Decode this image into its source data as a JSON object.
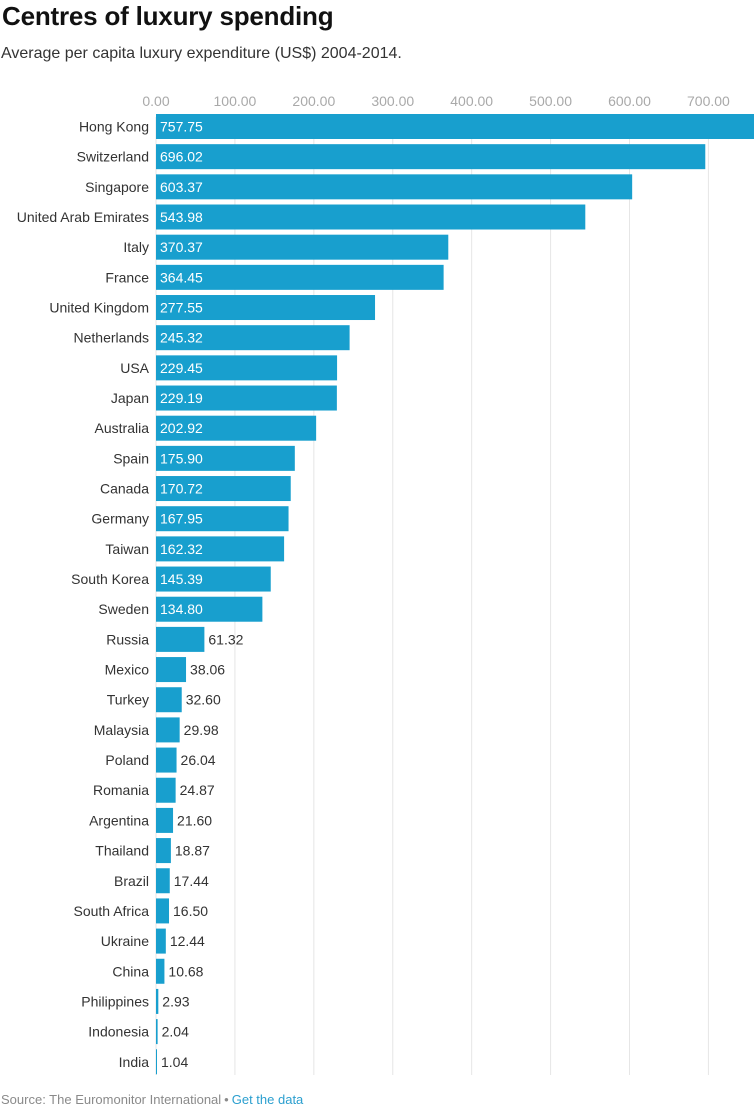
{
  "title": "Centres of luxury spending",
  "subtitle": "Average per capita luxury expenditure (US$) 2004-2014.",
  "footer": {
    "source": "Source: The Euromonitor International",
    "separator": "•",
    "link_label": "Get the data"
  },
  "colors": {
    "bar": "#189fce",
    "grid": "#e6e6e6",
    "tick_label": "#a9a9a9",
    "category_label": "#333333",
    "value_label_inside": "#ffffff",
    "value_label_outside": "#333333"
  },
  "chart_data": {
    "type": "bar",
    "orientation": "horizontal",
    "title": "Centres of luxury spending",
    "subtitle": "Average per capita luxury expenditure (US$) 2004-2014.",
    "xlabel": "",
    "ylabel": "",
    "xlim": [
      0,
      757.75
    ],
    "ticks": [
      0,
      100,
      200,
      300,
      400,
      500,
      600,
      700
    ],
    "tick_labels": [
      "0.00",
      "100.00",
      "200.00",
      "300.00",
      "400.00",
      "500.00",
      "600.00",
      "700.00"
    ],
    "grid": true,
    "legend": "none",
    "categories": [
      "Hong Kong",
      "Switzerland",
      "Singapore",
      "United Arab Emirates",
      "Italy",
      "France",
      "United Kingdom",
      "Netherlands",
      "USA",
      "Japan",
      "Australia",
      "Spain",
      "Canada",
      "Germany",
      "Taiwan",
      "South Korea",
      "Sweden",
      "Russia",
      "Mexico",
      "Turkey",
      "Malaysia",
      "Poland",
      "Romania",
      "Argentina",
      "Thailand",
      "Brazil",
      "South Africa",
      "Ukraine",
      "China",
      "Philippines",
      "Indonesia",
      "India"
    ],
    "values": [
      757.75,
      696.02,
      603.37,
      543.98,
      370.37,
      364.45,
      277.55,
      245.32,
      229.45,
      229.19,
      202.92,
      175.9,
      170.72,
      167.95,
      162.32,
      145.39,
      134.8,
      61.32,
      38.06,
      32.6,
      29.98,
      26.04,
      24.87,
      21.6,
      18.87,
      17.44,
      16.5,
      12.44,
      10.68,
      2.93,
      2.04,
      1.04
    ],
    "value_labels": [
      "757.75",
      "696.02",
      "603.37",
      "543.98",
      "370.37",
      "364.45",
      "277.55",
      "245.32",
      "229.45",
      "229.19",
      "202.92",
      "175.90",
      "170.72",
      "167.95",
      "162.32",
      "145.39",
      "134.80",
      "61.32",
      "38.06",
      "32.60",
      "29.98",
      "26.04",
      "24.87",
      "21.60",
      "18.87",
      "17.44",
      "16.50",
      "12.44",
      "10.68",
      "2.93",
      "2.04",
      "1.04"
    ]
  }
}
